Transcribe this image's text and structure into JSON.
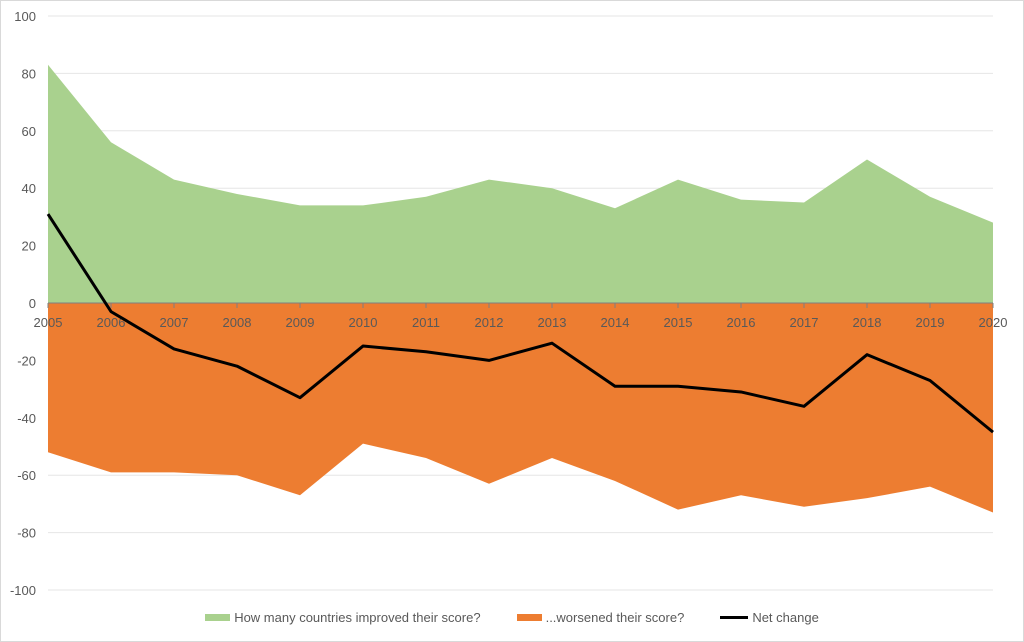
{
  "chart_data": {
    "type": "area",
    "title": "",
    "xlabel": "",
    "ylabel": "",
    "categories": [
      "2005",
      "2006",
      "2007",
      "2008",
      "2009",
      "2010",
      "2011",
      "2012",
      "2013",
      "2014",
      "2015",
      "2016",
      "2017",
      "2018",
      "2019",
      "2020"
    ],
    "ylim": [
      -100,
      100
    ],
    "yticks": [
      100,
      80,
      60,
      40,
      20,
      0,
      -20,
      -40,
      -60,
      -80,
      -100
    ],
    "grid": true,
    "legend_position": "bottom",
    "series": [
      {
        "name": "How many countries improved their score?",
        "type": "area",
        "color": "#a9d18e",
        "values": [
          83,
          56,
          43,
          38,
          34,
          34,
          37,
          43,
          40,
          33,
          43,
          36,
          35,
          50,
          37,
          28
        ]
      },
      {
        "name": "...worsened their score?",
        "type": "area",
        "color": "#ed7d31",
        "values": [
          -52,
          -59,
          -59,
          -60,
          -67,
          -49,
          -54,
          -63,
          -54,
          -62,
          -72,
          -67,
          -71,
          -68,
          -64,
          -73
        ]
      },
      {
        "name": "Net change",
        "type": "line",
        "color": "#000000",
        "values": [
          31,
          -3,
          -16,
          -22,
          -33,
          -15,
          -17,
          -20,
          -14,
          -29,
          -29,
          -31,
          -36,
          -18,
          -27,
          -45
        ]
      }
    ]
  }
}
